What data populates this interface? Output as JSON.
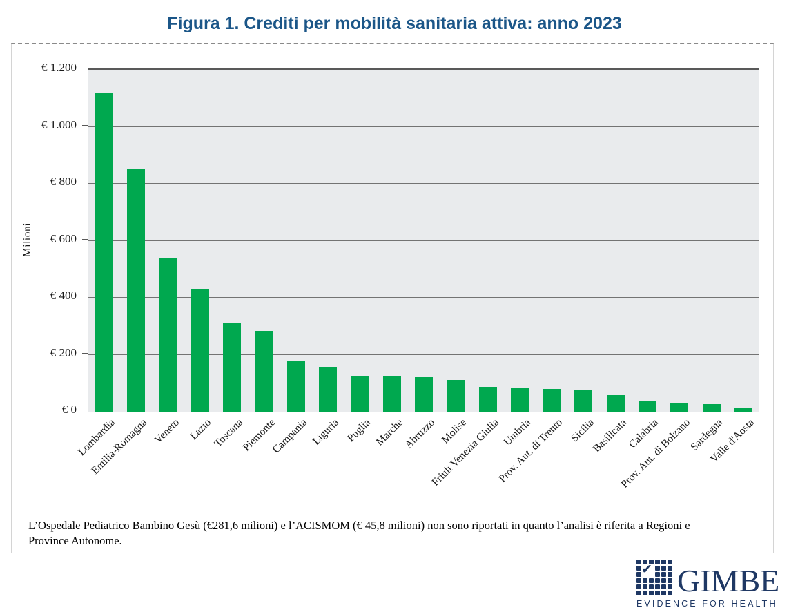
{
  "page": {
    "title": "Figura 1. Crediti per mobilità sanitaria attiva: anno 2023"
  },
  "chart_data": {
    "type": "bar",
    "title": "Figura 1. Crediti per mobilità sanitaria attiva: anno 2023",
    "series_name": "Crediti per mobilità sanitaria attiva (€ milioni), anno 2023",
    "xlabel": "",
    "ylabel": "Milioni",
    "ylim": [
      0,
      1200
    ],
    "ytick_step": 200,
    "ytick_labels": [
      "€ 1.200",
      "€ 1.000",
      "€ 800",
      "€ 600",
      "€ 400",
      "€ 200",
      "€ 0"
    ],
    "grid": true,
    "legend": false,
    "categories": [
      "Lombardia",
      "Emilia-Romagna",
      "Veneto",
      "Lazio",
      "Toscana",
      "Piemonte",
      "Campania",
      "Liguria",
      "Puglia",
      "Marche",
      "Abruzzo",
      "Molise",
      "Friuli Venezia Giulia",
      "Umbria",
      "Prov. Aut. di Trento",
      "Sicilia",
      "Basilicata",
      "Calabria",
      "Prov. Aut. di Bolzano",
      "Sardegna",
      "Valle d'Aosta"
    ],
    "values": [
      1120,
      850,
      538,
      430,
      311,
      284,
      178,
      158,
      126,
      125,
      122,
      111,
      87,
      82,
      79,
      75,
      58,
      36,
      31,
      27,
      14
    ]
  },
  "footnote": "L’Ospedale Pediatrico Bambino Gesù (€281,6 milioni) e l’ACISMOM (€ 45,8 milioni) non sono riportati in quanto l’analisi è riferita a Regioni e Province Autonome.",
  "logo": {
    "brand": "GIMBE",
    "tagline": "EVIDENCE FOR HEALTH",
    "mark": "grid-check-icon"
  },
  "colors": {
    "title_blue": "#1b5688",
    "bar_green": "#00a84f",
    "plot_background": "#e9ebed",
    "gridline_gray": "#737373",
    "logo_navy": "#1f3864"
  }
}
